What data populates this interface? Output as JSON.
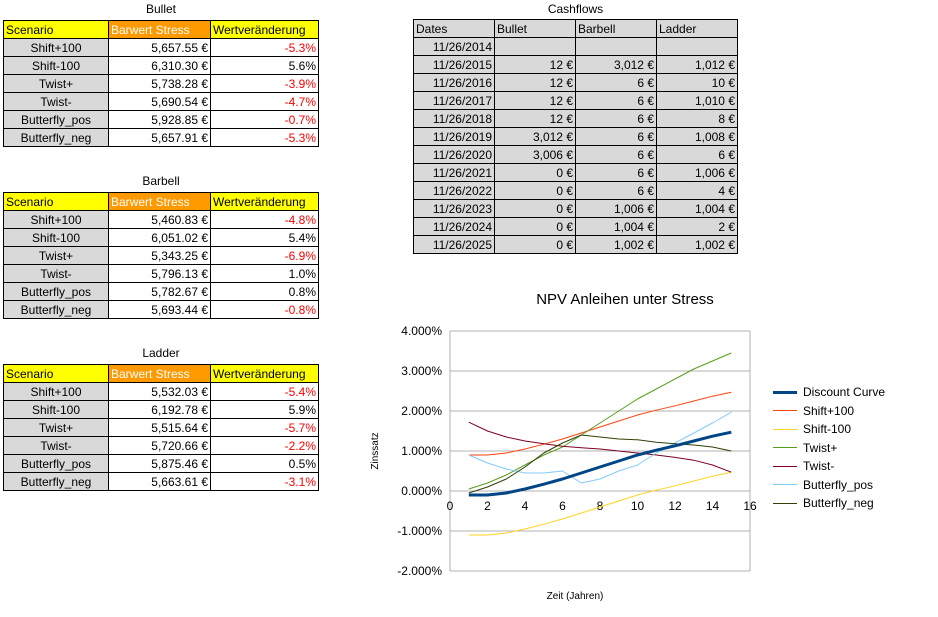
{
  "tables": [
    {
      "id": "bullet",
      "title": "Bullet",
      "headers": [
        "Scenario",
        "Barwert Stress",
        "Wertveränderung"
      ],
      "rows": [
        [
          "Shift+100",
          "5,657.55 €",
          "-5.3%"
        ],
        [
          "Shift-100",
          "6,310.30 €",
          "5.6%"
        ],
        [
          "Twist+",
          "5,738.28 €",
          "-3.9%"
        ],
        [
          "Twist-",
          "5,690.54 €",
          "-4.7%"
        ],
        [
          "Butterfly_pos",
          "5,928.85 €",
          "-0.7%"
        ],
        [
          "Butterfly_neg",
          "5,657.91 €",
          "-5.3%"
        ]
      ]
    },
    {
      "id": "barbell",
      "title": "Barbell",
      "headers": [
        "Scenario",
        "Barwert Stress",
        "Wertveränderung"
      ],
      "rows": [
        [
          "Shift+100",
          "5,460.83 €",
          "-4.8%"
        ],
        [
          "Shift-100",
          "6,051.02 €",
          "5.4%"
        ],
        [
          "Twist+",
          "5,343.25 €",
          "-6.9%"
        ],
        [
          "Twist-",
          "5,796.13 €",
          "1.0%"
        ],
        [
          "Butterfly_pos",
          "5,782.67 €",
          "0.8%"
        ],
        [
          "Butterfly_neg",
          "5,693.44 €",
          "-0.8%"
        ]
      ]
    },
    {
      "id": "ladder",
      "title": "Ladder",
      "headers": [
        "Scenario",
        "Barwert Stress",
        "Wertveränderung"
      ],
      "rows": [
        [
          "Shift+100",
          "5,532.03 €",
          "-5.4%"
        ],
        [
          "Shift-100",
          "6,192.78 €",
          "5.9%"
        ],
        [
          "Twist+",
          "5,515.64 €",
          "-5.7%"
        ],
        [
          "Twist-",
          "5,720.66 €",
          "-2.2%"
        ],
        [
          "Butterfly_pos",
          "5,875.46 €",
          "0.5%"
        ],
        [
          "Butterfly_neg",
          "5,663.61 €",
          "-3.1%"
        ]
      ]
    }
  ],
  "cashflows": {
    "title": "Cashflows",
    "headers": [
      "Dates",
      "Bullet",
      "Barbell",
      "Ladder"
    ],
    "rows": [
      [
        "11/26/2014",
        "",
        "",
        ""
      ],
      [
        "11/26/2015",
        "12 €",
        "3,012 €",
        "1,012 €"
      ],
      [
        "11/26/2016",
        "12 €",
        "6 €",
        "10 €"
      ],
      [
        "11/26/2017",
        "12 €",
        "6 €",
        "1,010 €"
      ],
      [
        "11/26/2018",
        "12 €",
        "6 €",
        "8 €"
      ],
      [
        "11/26/2019",
        "3,012 €",
        "6 €",
        "1,008 €"
      ],
      [
        "11/26/2020",
        "3,006 €",
        "6 €",
        "6 €"
      ],
      [
        "11/26/2021",
        "0 €",
        "6 €",
        "1,006 €"
      ],
      [
        "11/26/2022",
        "0 €",
        "6 €",
        "4 €"
      ],
      [
        "11/26/2023",
        "0 €",
        "1,006 €",
        "1,004 €"
      ],
      [
        "11/26/2024",
        "0 €",
        "1,004 €",
        "2 €"
      ],
      [
        "11/26/2025",
        "0 €",
        "1,002 €",
        "1,002 €"
      ]
    ]
  },
  "chart_data": {
    "type": "line",
    "title": "NPV Anleihen unter Stress",
    "xlabel": "Zeit (Jahren)",
    "ylabel": "Zinssatz",
    "xlim": [
      0,
      16
    ],
    "ylim": [
      -2.0,
      4.0
    ],
    "x_ticks": [
      "0",
      "2",
      "4",
      "6",
      "8",
      "10",
      "12",
      "14",
      "16"
    ],
    "y_ticks": [
      "4.000%",
      "3.000%",
      "2.000%",
      "1.000%",
      "0.000%",
      "-1.000%",
      "-2.000%"
    ],
    "grid": "horizontal",
    "legend_position": "right",
    "x": [
      1,
      2,
      3,
      4,
      5,
      6,
      7,
      8,
      9,
      10,
      11,
      12,
      13,
      14,
      15
    ],
    "series": [
      {
        "name": "Discount Curve",
        "color": "#004586",
        "width": 3,
        "values": [
          -0.1,
          -0.1,
          -0.05,
          0.05,
          0.17,
          0.3,
          0.45,
          0.6,
          0.75,
          0.9,
          1.02,
          1.13,
          1.25,
          1.37,
          1.47
        ]
      },
      {
        "name": "Shift+100",
        "color": "#ff420e",
        "width": 1,
        "values": [
          0.9,
          0.9,
          0.95,
          1.05,
          1.17,
          1.3,
          1.45,
          1.6,
          1.75,
          1.9,
          2.02,
          2.13,
          2.25,
          2.37,
          2.47
        ]
      },
      {
        "name": "Shift-100",
        "color": "#ffd320",
        "width": 1,
        "values": [
          -1.1,
          -1.1,
          -1.05,
          -0.95,
          -0.83,
          -0.7,
          -0.55,
          -0.4,
          -0.25,
          -0.1,
          0.02,
          0.13,
          0.25,
          0.37,
          0.47
        ]
      },
      {
        "name": "Twist+",
        "color": "#579d1c",
        "width": 1,
        "values": [
          0.05,
          0.2,
          0.4,
          0.65,
          0.9,
          1.1,
          1.4,
          1.7,
          2.0,
          2.3,
          2.55,
          2.8,
          3.05,
          3.25,
          3.45
        ]
      },
      {
        "name": "Twist-",
        "color": "#7e0021",
        "width": 1,
        "values": [
          1.72,
          1.5,
          1.35,
          1.25,
          1.18,
          1.12,
          1.08,
          1.05,
          1.0,
          0.95,
          0.9,
          0.84,
          0.77,
          0.65,
          0.47
        ]
      },
      {
        "name": "Butterfly_pos",
        "color": "#83caff",
        "width": 1,
        "values": [
          0.9,
          0.7,
          0.55,
          0.45,
          0.45,
          0.5,
          0.2,
          0.3,
          0.5,
          0.65,
          0.95,
          1.2,
          1.45,
          1.7,
          1.97
        ]
      },
      {
        "name": "Butterfly_neg",
        "color": "#314004",
        "width": 1,
        "values": [
          -0.05,
          0.1,
          0.3,
          0.6,
          0.95,
          1.2,
          1.4,
          1.35,
          1.3,
          1.28,
          1.22,
          1.18,
          1.15,
          1.1,
          1.0
        ]
      }
    ]
  }
}
